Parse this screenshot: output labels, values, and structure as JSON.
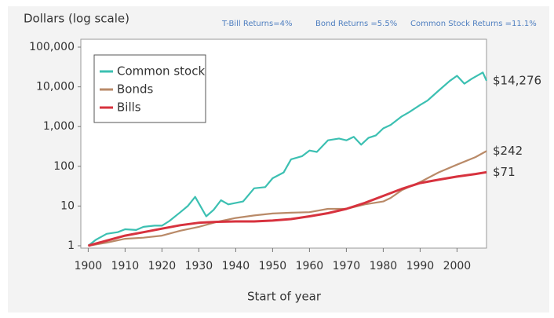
{
  "chart_data": {
    "type": "line",
    "y_label": "Dollars (log scale)",
    "x_label": "Start of year",
    "annotations": [
      "T-Bill Returns=4%",
      "Bond Returns =5.5%",
      "Common Stock Returns =11.1%"
    ],
    "log_scale": true,
    "legend": "upper left",
    "xlim": [
      1898,
      2008
    ],
    "xticks": [
      1900,
      1910,
      1920,
      1930,
      1940,
      1950,
      1960,
      1970,
      1980,
      1990,
      2000
    ],
    "ylim": [
      1,
      100000
    ],
    "yticks": [
      1,
      10,
      100,
      {
        "value": 1000,
        "label": "1,000"
      },
      {
        "value": 10000,
        "label": "10,000"
      },
      {
        "value": 100000,
        "label": "100,000"
      }
    ],
    "series": [
      {
        "name": "Common stock",
        "color": "#3cc0b2",
        "x": [
          1900,
          1902,
          1905,
          1908,
          1910,
          1913,
          1915,
          1918,
          1920,
          1922,
          1925,
          1927,
          1929,
          1932,
          1934,
          1936,
          1938,
          1940,
          1942,
          1945,
          1948,
          1950,
          1953,
          1955,
          1958,
          1960,
          1962,
          1965,
          1968,
          1970,
          1972,
          1974,
          1976,
          1978,
          1980,
          1982,
          1985,
          1987,
          1990,
          1992,
          1995,
          1998,
          2000,
          2002,
          2004,
          2007,
          2008
        ],
        "values": [
          1,
          1.4,
          2,
          2.2,
          2.6,
          2.5,
          3,
          3.2,
          3.2,
          4.2,
          7,
          10,
          17,
          5.5,
          8,
          14,
          11,
          12,
          13,
          28,
          30,
          50,
          70,
          150,
          180,
          250,
          230,
          450,
          500,
          450,
          550,
          350,
          520,
          600,
          900,
          1100,
          1800,
          2300,
          3500,
          4500,
          8000,
          14000,
          19000,
          12000,
          16000,
          23000,
          14276
        ],
        "value_labels": [
          null,
          null,
          null,
          null,
          null,
          null,
          null,
          null,
          null,
          null,
          null,
          null,
          null,
          null,
          null,
          null,
          null,
          null,
          null,
          null,
          null,
          null,
          null,
          null,
          null,
          null,
          null,
          null,
          null,
          null,
          null,
          null,
          null,
          null,
          null,
          null,
          null,
          null,
          null,
          null,
          null,
          null,
          null,
          null,
          null,
          null,
          "$14,276"
        ]
      },
      {
        "name": "Bonds",
        "color": "#b98a68",
        "x": [
          1900,
          1905,
          1910,
          1915,
          1920,
          1925,
          1930,
          1935,
          1940,
          1945,
          1950,
          1955,
          1960,
          1965,
          1970,
          1975,
          1980,
          1982,
          1985,
          1990,
          1995,
          2000,
          2005,
          2008
        ],
        "values": [
          1,
          1.2,
          1.5,
          1.6,
          1.8,
          2.4,
          3,
          4,
          5,
          5.8,
          6.5,
          6.8,
          7,
          8.5,
          8.5,
          11,
          13,
          16,
          25,
          40,
          70,
          110,
          170,
          242
        ],
        "value_labels": [
          null,
          null,
          null,
          null,
          null,
          null,
          null,
          null,
          null,
          null,
          null,
          null,
          null,
          null,
          null,
          null,
          null,
          null,
          null,
          null,
          null,
          null,
          null,
          "$242"
        ]
      },
      {
        "name": "Bills",
        "color": "#d7323e",
        "x": [
          1900,
          1905,
          1910,
          1915,
          1920,
          1925,
          1930,
          1935,
          1940,
          1945,
          1950,
          1955,
          1960,
          1965,
          1970,
          1975,
          1980,
          1985,
          1990,
          1995,
          2000,
          2005,
          2008
        ],
        "values": [
          1,
          1.35,
          1.8,
          2.2,
          2.7,
          3.3,
          3.8,
          4,
          4.1,
          4.1,
          4.3,
          4.7,
          5.5,
          6.6,
          8.5,
          12,
          18,
          27,
          38,
          46,
          55,
          64,
          71
        ],
        "value_labels": [
          null,
          null,
          null,
          null,
          null,
          null,
          null,
          null,
          null,
          null,
          null,
          null,
          null,
          null,
          null,
          null,
          null,
          null,
          null,
          null,
          null,
          null,
          "$71"
        ]
      }
    ]
  }
}
